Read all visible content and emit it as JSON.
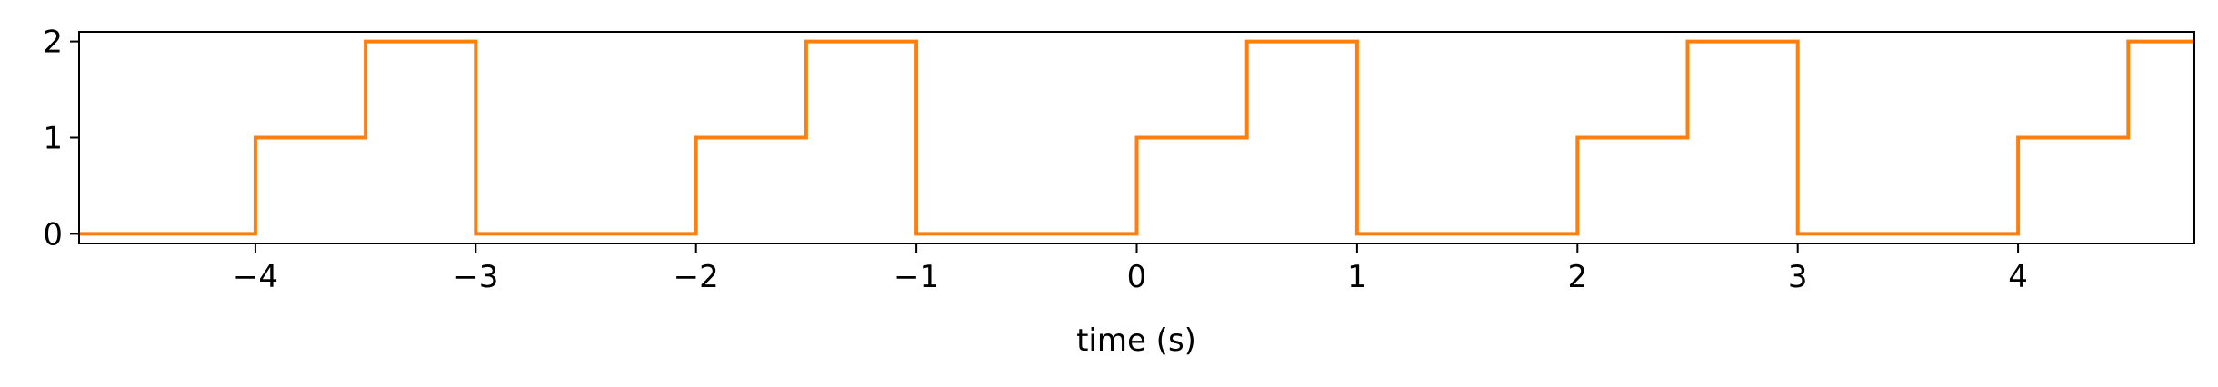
{
  "chart_data": {
    "type": "line",
    "step": true,
    "xlabel": "time (s)",
    "ylabel": "",
    "xlim": [
      -4.8,
      4.8
    ],
    "ylim": [
      -0.1,
      2.1
    ],
    "grid": false,
    "x_ticks": [
      {
        "value": -4,
        "label": "−4"
      },
      {
        "value": -3,
        "label": "−3"
      },
      {
        "value": -2,
        "label": "−2"
      },
      {
        "value": -1,
        "label": "−1"
      },
      {
        "value": 0,
        "label": "0"
      },
      {
        "value": 1,
        "label": "1"
      },
      {
        "value": 2,
        "label": "2"
      },
      {
        "value": 3,
        "label": "3"
      },
      {
        "value": 4,
        "label": "4"
      }
    ],
    "y_ticks": [
      {
        "value": 0,
        "label": "0"
      },
      {
        "value": 1,
        "label": "1"
      },
      {
        "value": 2,
        "label": "2"
      }
    ],
    "series": [
      {
        "color": "#ff7f0e",
        "points": [
          [
            -4.8,
            0
          ],
          [
            -4.0,
            0
          ],
          [
            -4.0,
            1
          ],
          [
            -3.5,
            1
          ],
          [
            -3.5,
            2
          ],
          [
            -3.0,
            2
          ],
          [
            -3.0,
            0
          ],
          [
            -2.0,
            0
          ],
          [
            -2.0,
            1
          ],
          [
            -1.5,
            1
          ],
          [
            -1.5,
            2
          ],
          [
            -1.0,
            2
          ],
          [
            -1.0,
            0
          ],
          [
            0.0,
            0
          ],
          [
            0.0,
            1
          ],
          [
            0.5,
            1
          ],
          [
            0.5,
            2
          ],
          [
            1.0,
            2
          ],
          [
            1.0,
            0
          ],
          [
            2.0,
            0
          ],
          [
            2.0,
            1
          ],
          [
            2.5,
            1
          ],
          [
            2.5,
            2
          ],
          [
            3.0,
            2
          ],
          [
            3.0,
            0
          ],
          [
            4.0,
            0
          ],
          [
            4.0,
            1
          ],
          [
            4.5,
            1
          ],
          [
            4.5,
            2
          ],
          [
            4.8,
            2
          ]
        ]
      }
    ]
  }
}
